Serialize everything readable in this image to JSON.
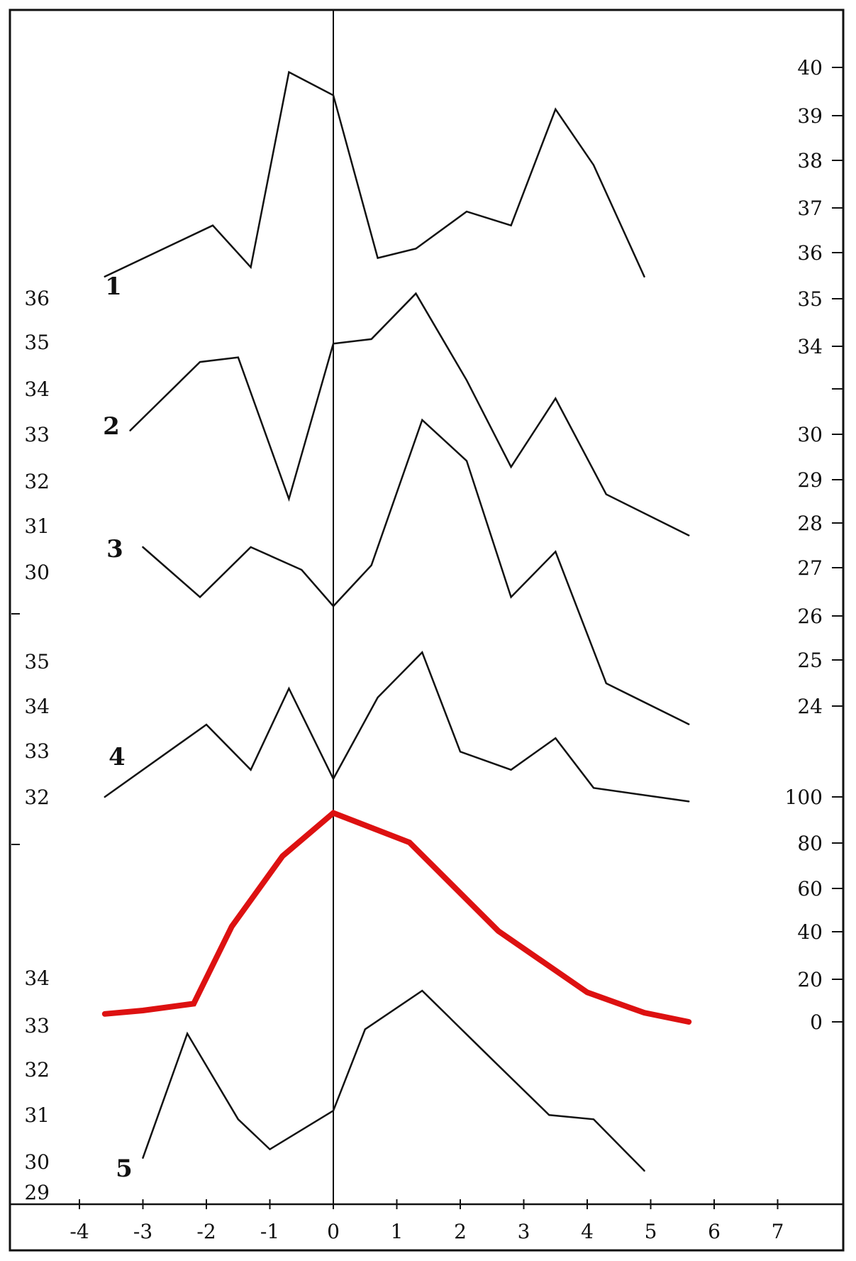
{
  "chart_data": {
    "type": "line",
    "title": "",
    "xlabel": "",
    "ylabel": "",
    "grid": false,
    "x_ticks": [
      -4,
      -3,
      -2,
      -1,
      0,
      1,
      2,
      3,
      4,
      5,
      6,
      7
    ],
    "x_tick_labels": [
      "-4",
      "-3",
      "-2",
      "-1",
      "0",
      "1",
      "2",
      "3",
      "4",
      "5",
      "6",
      "7"
    ],
    "left_axis_labels": [
      "36",
      "35",
      "34",
      "33",
      "32",
      "31",
      "30",
      "35",
      "34",
      "33",
      "32",
      "34",
      "33",
      "32",
      "31",
      "30",
      "29"
    ],
    "right_axis_labels": [
      "40",
      "39",
      "38",
      "37",
      "36",
      "35",
      "34",
      "30",
      "29",
      "28",
      "27",
      "26",
      "25",
      "24",
      "100",
      "80",
      "60",
      "40",
      "20",
      "0"
    ],
    "series": [
      {
        "name": "1",
        "axis": "right-top",
        "color": "#111111",
        "points": [
          [
            -3.6,
            35.5
          ],
          [
            -1.9,
            36.6
          ],
          [
            -1.3,
            35.7
          ],
          [
            -0.7,
            39.9
          ],
          [
            0.0,
            39.4
          ],
          [
            0.7,
            35.9
          ],
          [
            1.3,
            36.1
          ],
          [
            2.1,
            36.9
          ],
          [
            2.8,
            36.6
          ],
          [
            3.5,
            39.1
          ],
          [
            4.1,
            37.9
          ],
          [
            4.9,
            35.5
          ]
        ]
      },
      {
        "name": "2",
        "axis": "left-top",
        "color": "#111111",
        "points": [
          [
            -3.2,
            33.1
          ],
          [
            -2.1,
            34.6
          ],
          [
            -1.5,
            34.7
          ],
          [
            -0.7,
            31.6
          ],
          [
            0.0,
            35.0
          ],
          [
            0.6,
            35.1
          ],
          [
            1.3,
            36.1
          ],
          [
            2.1,
            34.2
          ],
          [
            2.8,
            32.3
          ],
          [
            3.5,
            33.8
          ],
          [
            4.3,
            31.7
          ],
          [
            5.6,
            30.8
          ]
        ]
      },
      {
        "name": "3",
        "axis": "right-mid",
        "color": "#111111",
        "points": [
          [
            -3.0,
            27.5
          ],
          [
            -2.1,
            26.4
          ],
          [
            -1.3,
            27.5
          ],
          [
            -0.5,
            27.0
          ],
          [
            0.0,
            26.2
          ],
          [
            0.6,
            27.1
          ],
          [
            1.4,
            30.3
          ],
          [
            2.1,
            29.4
          ],
          [
            2.8,
            26.4
          ],
          [
            3.5,
            27.4
          ],
          [
            4.3,
            24.5
          ],
          [
            5.6,
            23.6
          ]
        ]
      },
      {
        "name": "4",
        "axis": "left-mid",
        "color": "#111111",
        "points": [
          [
            -3.6,
            32.0
          ],
          [
            -2.0,
            33.6
          ],
          [
            -1.3,
            32.6
          ],
          [
            -0.7,
            34.4
          ],
          [
            0.0,
            32.4
          ],
          [
            0.7,
            34.2
          ],
          [
            1.4,
            35.2
          ],
          [
            2.0,
            33.0
          ],
          [
            2.8,
            32.6
          ],
          [
            3.5,
            33.3
          ],
          [
            4.1,
            32.2
          ],
          [
            5.6,
            31.9
          ]
        ]
      },
      {
        "name": "",
        "axis": "right-bottom",
        "color": "#dd1111",
        "points": [
          [
            -3.6,
            3.5
          ],
          [
            -3.0,
            5
          ],
          [
            -2.2,
            8
          ],
          [
            -1.6,
            42
          ],
          [
            -0.8,
            73
          ],
          [
            0.0,
            92
          ],
          [
            1.2,
            79
          ],
          [
            2.6,
            40
          ],
          [
            4.0,
            13
          ],
          [
            4.9,
            4
          ],
          [
            5.6,
            0
          ]
        ]
      },
      {
        "name": "5",
        "axis": "left-bottom",
        "color": "#111111",
        "points": [
          [
            -3.0,
            29.8
          ],
          [
            -2.3,
            32.7
          ],
          [
            -1.5,
            30.7
          ],
          [
            -1.0,
            30.0
          ],
          [
            0.0,
            30.9
          ],
          [
            0.5,
            32.8
          ],
          [
            1.4,
            33.7
          ],
          [
            2.5,
            32.1
          ],
          [
            3.4,
            30.8
          ],
          [
            4.1,
            30.7
          ],
          [
            4.9,
            29.5
          ]
        ]
      }
    ]
  }
}
